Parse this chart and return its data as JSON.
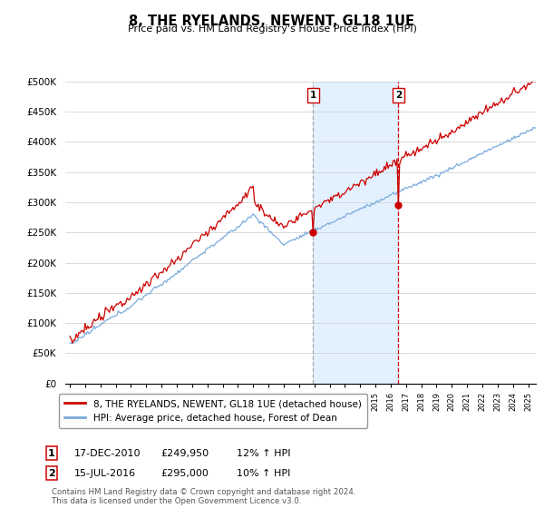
{
  "title": "8, THE RYELANDS, NEWENT, GL18 1UE",
  "subtitle": "Price paid vs. HM Land Registry's House Price Index (HPI)",
  "legend_line1": "8, THE RYELANDS, NEWENT, GL18 1UE (detached house)",
  "legend_line2": "HPI: Average price, detached house, Forest of Dean",
  "annotation1_label": "1",
  "annotation1_date": "17-DEC-2010",
  "annotation1_price": "£249,950",
  "annotation1_hpi": "12% ↑ HPI",
  "annotation2_label": "2",
  "annotation2_date": "15-JUL-2016",
  "annotation2_price": "£295,000",
  "annotation2_hpi": "10% ↑ HPI",
  "footer": "Contains HM Land Registry data © Crown copyright and database right 2024.\nThis data is licensed under the Open Government Licence v3.0.",
  "red_color": "#cc0000",
  "blue_color": "#7aaadd",
  "shade_color": "#ddeeff",
  "vline1_color": "#aaaaaa",
  "vline2_color": "#cc0000",
  "ylim": [
    0,
    500000
  ],
  "yticks": [
    0,
    50000,
    100000,
    150000,
    200000,
    250000,
    300000,
    350000,
    400000,
    450000,
    500000
  ],
  "start_year": 1995,
  "end_year": 2025,
  "fig_width": 6.0,
  "fig_height": 5.6,
  "dpi": 100
}
